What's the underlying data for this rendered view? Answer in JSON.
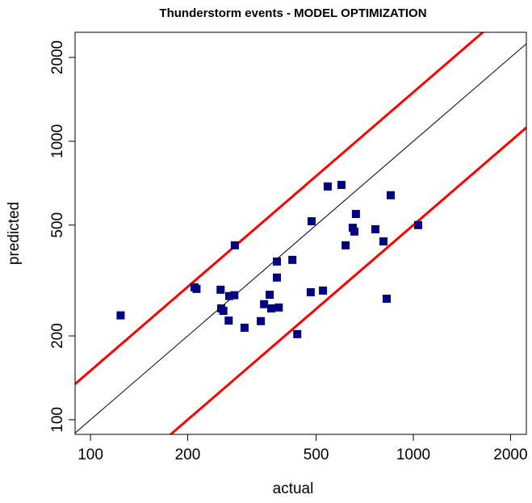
{
  "chart_data": {
    "type": "scatter",
    "title": "Thunderstorm events - MODEL OPTIMIZATION",
    "x_label": "actual",
    "y_label": "predicted",
    "log_x": true,
    "log_y": true,
    "xlim": [
      89.6,
      2239
    ],
    "ylim": [
      88.6,
      2462
    ],
    "xticks": [
      100,
      200,
      500,
      1000,
      2000
    ],
    "yticks": [
      100,
      200,
      500,
      1000,
      2000
    ],
    "reference_lines": [
      {
        "ratio": 1,
        "color": "#000000"
      },
      {
        "ratio": 1.5,
        "color": "#ff0000"
      },
      {
        "ratio": 0.5,
        "color": "#ff0000"
      }
    ],
    "series": [
      {
        "color": "#000080",
        "x": [
          124,
          210,
          213,
          280,
          253,
          254,
          258,
          269,
          279,
          268,
          300,
          337,
          345,
          359,
          363,
          383,
          378,
          378,
          422,
          437,
          481,
          484,
          525,
          543,
          599,
          617,
          649,
          657,
          664,
          763,
          808,
          827,
          851,
          1035
        ],
        "values": [
          237,
          299,
          295,
          423,
          293,
          251,
          246,
          278,
          280,
          227,
          214,
          226,
          260,
          281,
          251,
          253,
          370,
          324,
          375,
          203,
          287,
          516,
          291,
          688,
          697,
          423,
          489,
          474,
          548,
          483,
          437,
          272,
          640,
          500
        ]
      }
    ]
  }
}
